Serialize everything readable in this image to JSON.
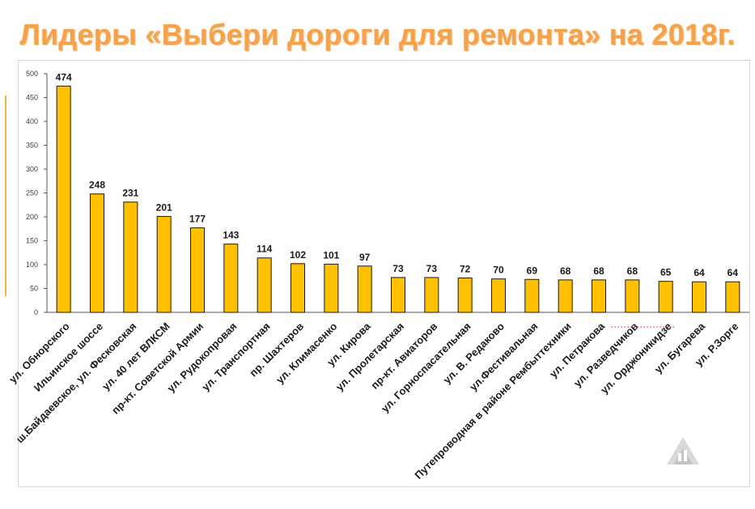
{
  "slide": {
    "title": "Лидеры «Выбери дороги для ремонта» на 2018г."
  },
  "colors": {
    "bar_fill": "#FFC000",
    "bar_stroke": "#1a1a1a",
    "title": "#F6A24A",
    "accent": "#F3B33D"
  },
  "chart_data": {
    "type": "bar",
    "title": "",
    "xlabel": "",
    "ylabel": "",
    "ylim": [
      0,
      500
    ],
    "yticks": [
      0,
      50,
      100,
      150,
      200,
      250,
      300,
      350,
      400,
      450,
      500
    ],
    "grid": false,
    "legend": "none",
    "categories": [
      "ул. Обнорского",
      "Ильинское шоссе",
      "ш.Байдаевское, ул. Фесковская",
      "ул. 40 лет ВЛКСМ",
      "пр-кт. Советской Армии",
      "ул. Рудокопровая",
      "ул. Транспортная",
      "пр. Шахтеров",
      "ул. Климасенко",
      "ул. Кирова",
      "ул. Пролетарская",
      "пр-кт. Авиаторов",
      "ул. Горноспасательная",
      "ул. В. Редаково",
      "ул.Фестивальная",
      "Путепроводная в районе Рембыттехники",
      "ул. Петракова",
      "ул. Разведчиков",
      "ул. Орджоникидзе",
      "ул. Бугарева",
      "ул. Р.Зорге"
    ],
    "values": [
      474,
      248,
      231,
      201,
      177,
      143,
      114,
      102,
      101,
      97,
      73,
      73,
      72,
      70,
      69,
      68,
      68,
      68,
      65,
      64,
      64
    ]
  }
}
